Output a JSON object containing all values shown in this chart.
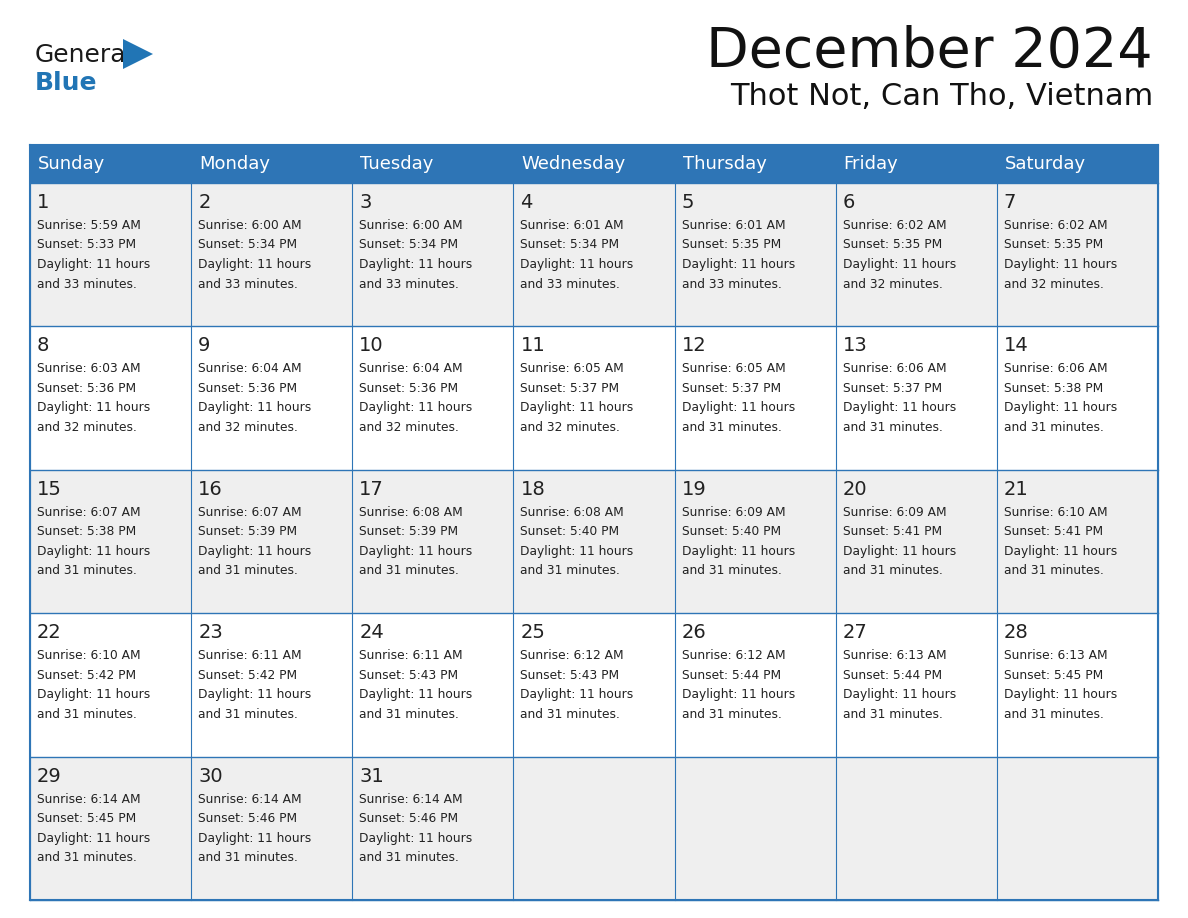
{
  "title": "December 2024",
  "subtitle": "Thot Not, Can Tho, Vietnam",
  "days_of_week": [
    "Sunday",
    "Monday",
    "Tuesday",
    "Wednesday",
    "Thursday",
    "Friday",
    "Saturday"
  ],
  "header_bg": "#2E75B6",
  "header_text": "#FFFFFF",
  "row_bg_odd": "#EFEFEF",
  "row_bg_even": "#FFFFFF",
  "cell_text": "#222222",
  "grid_color": "#2E75B6",
  "title_color": "#111111",
  "days": [
    {
      "date": 1,
      "col": 0,
      "row": 0,
      "sunrise": "5:59 AM",
      "sunset": "5:33 PM",
      "daylight": "11 hours and 33 minutes."
    },
    {
      "date": 2,
      "col": 1,
      "row": 0,
      "sunrise": "6:00 AM",
      "sunset": "5:34 PM",
      "daylight": "11 hours and 33 minutes."
    },
    {
      "date": 3,
      "col": 2,
      "row": 0,
      "sunrise": "6:00 AM",
      "sunset": "5:34 PM",
      "daylight": "11 hours and 33 minutes."
    },
    {
      "date": 4,
      "col": 3,
      "row": 0,
      "sunrise": "6:01 AM",
      "sunset": "5:34 PM",
      "daylight": "11 hours and 33 minutes."
    },
    {
      "date": 5,
      "col": 4,
      "row": 0,
      "sunrise": "6:01 AM",
      "sunset": "5:35 PM",
      "daylight": "11 hours and 33 minutes."
    },
    {
      "date": 6,
      "col": 5,
      "row": 0,
      "sunrise": "6:02 AM",
      "sunset": "5:35 PM",
      "daylight": "11 hours and 32 minutes."
    },
    {
      "date": 7,
      "col": 6,
      "row": 0,
      "sunrise": "6:02 AM",
      "sunset": "5:35 PM",
      "daylight": "11 hours and 32 minutes."
    },
    {
      "date": 8,
      "col": 0,
      "row": 1,
      "sunrise": "6:03 AM",
      "sunset": "5:36 PM",
      "daylight": "11 hours and 32 minutes."
    },
    {
      "date": 9,
      "col": 1,
      "row": 1,
      "sunrise": "6:04 AM",
      "sunset": "5:36 PM",
      "daylight": "11 hours and 32 minutes."
    },
    {
      "date": 10,
      "col": 2,
      "row": 1,
      "sunrise": "6:04 AM",
      "sunset": "5:36 PM",
      "daylight": "11 hours and 32 minutes."
    },
    {
      "date": 11,
      "col": 3,
      "row": 1,
      "sunrise": "6:05 AM",
      "sunset": "5:37 PM",
      "daylight": "11 hours and 32 minutes."
    },
    {
      "date": 12,
      "col": 4,
      "row": 1,
      "sunrise": "6:05 AM",
      "sunset": "5:37 PM",
      "daylight": "11 hours and 31 minutes."
    },
    {
      "date": 13,
      "col": 5,
      "row": 1,
      "sunrise": "6:06 AM",
      "sunset": "5:37 PM",
      "daylight": "11 hours and 31 minutes."
    },
    {
      "date": 14,
      "col": 6,
      "row": 1,
      "sunrise": "6:06 AM",
      "sunset": "5:38 PM",
      "daylight": "11 hours and 31 minutes."
    },
    {
      "date": 15,
      "col": 0,
      "row": 2,
      "sunrise": "6:07 AM",
      "sunset": "5:38 PM",
      "daylight": "11 hours and 31 minutes."
    },
    {
      "date": 16,
      "col": 1,
      "row": 2,
      "sunrise": "6:07 AM",
      "sunset": "5:39 PM",
      "daylight": "11 hours and 31 minutes."
    },
    {
      "date": 17,
      "col": 2,
      "row": 2,
      "sunrise": "6:08 AM",
      "sunset": "5:39 PM",
      "daylight": "11 hours and 31 minutes."
    },
    {
      "date": 18,
      "col": 3,
      "row": 2,
      "sunrise": "6:08 AM",
      "sunset": "5:40 PM",
      "daylight": "11 hours and 31 minutes."
    },
    {
      "date": 19,
      "col": 4,
      "row": 2,
      "sunrise": "6:09 AM",
      "sunset": "5:40 PM",
      "daylight": "11 hours and 31 minutes."
    },
    {
      "date": 20,
      "col": 5,
      "row": 2,
      "sunrise": "6:09 AM",
      "sunset": "5:41 PM",
      "daylight": "11 hours and 31 minutes."
    },
    {
      "date": 21,
      "col": 6,
      "row": 2,
      "sunrise": "6:10 AM",
      "sunset": "5:41 PM",
      "daylight": "11 hours and 31 minutes."
    },
    {
      "date": 22,
      "col": 0,
      "row": 3,
      "sunrise": "6:10 AM",
      "sunset": "5:42 PM",
      "daylight": "11 hours and 31 minutes."
    },
    {
      "date": 23,
      "col": 1,
      "row": 3,
      "sunrise": "6:11 AM",
      "sunset": "5:42 PM",
      "daylight": "11 hours and 31 minutes."
    },
    {
      "date": 24,
      "col": 2,
      "row": 3,
      "sunrise": "6:11 AM",
      "sunset": "5:43 PM",
      "daylight": "11 hours and 31 minutes."
    },
    {
      "date": 25,
      "col": 3,
      "row": 3,
      "sunrise": "6:12 AM",
      "sunset": "5:43 PM",
      "daylight": "11 hours and 31 minutes."
    },
    {
      "date": 26,
      "col": 4,
      "row": 3,
      "sunrise": "6:12 AM",
      "sunset": "5:44 PM",
      "daylight": "11 hours and 31 minutes."
    },
    {
      "date": 27,
      "col": 5,
      "row": 3,
      "sunrise": "6:13 AM",
      "sunset": "5:44 PM",
      "daylight": "11 hours and 31 minutes."
    },
    {
      "date": 28,
      "col": 6,
      "row": 3,
      "sunrise": "6:13 AM",
      "sunset": "5:45 PM",
      "daylight": "11 hours and 31 minutes."
    },
    {
      "date": 29,
      "col": 0,
      "row": 4,
      "sunrise": "6:14 AM",
      "sunset": "5:45 PM",
      "daylight": "11 hours and 31 minutes."
    },
    {
      "date": 30,
      "col": 1,
      "row": 4,
      "sunrise": "6:14 AM",
      "sunset": "5:46 PM",
      "daylight": "11 hours and 31 minutes."
    },
    {
      "date": 31,
      "col": 2,
      "row": 4,
      "sunrise": "6:14 AM",
      "sunset": "5:46 PM",
      "daylight": "11 hours and 31 minutes."
    }
  ]
}
